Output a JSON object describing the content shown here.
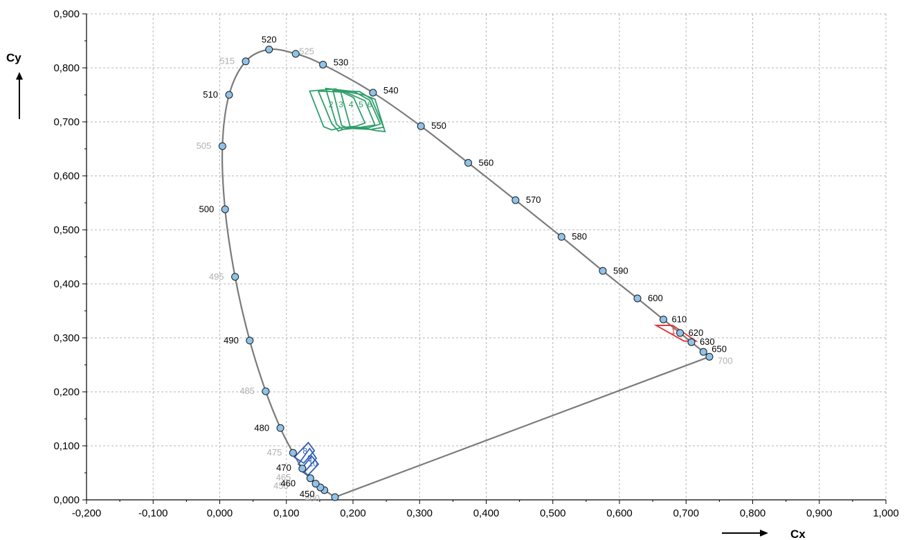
{
  "chart_data": {
    "type": "scatter",
    "xlabel": "Cx",
    "ylabel": "Cy",
    "xlim": [
      -0.2,
      1.0
    ],
    "ylim": [
      0.0,
      0.9
    ],
    "x_ticks": [
      "-0,200",
      "-0,100",
      "0,000",
      "0,100",
      "0,200",
      "0,300",
      "0,400",
      "0,500",
      "0,600",
      "0,700",
      "0,800",
      "0,900",
      "1,000"
    ],
    "y_ticks": [
      "0,000",
      "0,100",
      "0,200",
      "0,300",
      "0,400",
      "0,500",
      "0,600",
      "0,700",
      "0,800",
      "0,900"
    ],
    "grid": true,
    "locus_color": "#7a7a7a",
    "marker_color": "#8ec3ea",
    "locus_points": [
      {
        "label": "400",
        "x": 0.173,
        "y": 0.005,
        "label_color": "#b0b0b0"
      },
      {
        "label": "450",
        "x": 0.157,
        "y": 0.018,
        "label_color": "#000000"
      },
      {
        "label": "455",
        "x": 0.151,
        "y": 0.023,
        "label_color": "#b0b0b0"
      },
      {
        "label": "460",
        "x": 0.144,
        "y": 0.03,
        "label_color": "#000000"
      },
      {
        "label": "465",
        "x": 0.136,
        "y": 0.04,
        "label_color": "#b0b0b0"
      },
      {
        "label": "470",
        "x": 0.124,
        "y": 0.058,
        "label_color": "#000000"
      },
      {
        "label": "475",
        "x": 0.11,
        "y": 0.087,
        "label_color": "#b0b0b0"
      },
      {
        "label": "480",
        "x": 0.091,
        "y": 0.133,
        "label_color": "#000000"
      },
      {
        "label": "485",
        "x": 0.069,
        "y": 0.201,
        "label_color": "#b0b0b0"
      },
      {
        "label": "490",
        "x": 0.045,
        "y": 0.295,
        "label_color": "#000000"
      },
      {
        "label": "495",
        "x": 0.023,
        "y": 0.413,
        "label_color": "#b0b0b0"
      },
      {
        "label": "500",
        "x": 0.008,
        "y": 0.538,
        "label_color": "#000000"
      },
      {
        "label": "505",
        "x": 0.004,
        "y": 0.655,
        "label_color": "#b0b0b0"
      },
      {
        "label": "510",
        "x": 0.014,
        "y": 0.75,
        "label_color": "#000000"
      },
      {
        "label": "515",
        "x": 0.039,
        "y": 0.812,
        "label_color": "#b0b0b0"
      },
      {
        "label": "520",
        "x": 0.074,
        "y": 0.834,
        "label_color": "#000000"
      },
      {
        "label": "525",
        "x": 0.114,
        "y": 0.826,
        "label_color": "#b0b0b0"
      },
      {
        "label": "530",
        "x": 0.155,
        "y": 0.806,
        "label_color": "#000000"
      },
      {
        "label": "540",
        "x": 0.23,
        "y": 0.754,
        "label_color": "#000000"
      },
      {
        "label": "550",
        "x": 0.302,
        "y": 0.692,
        "label_color": "#000000"
      },
      {
        "label": "560",
        "x": 0.373,
        "y": 0.624,
        "label_color": "#000000"
      },
      {
        "label": "570",
        "x": 0.444,
        "y": 0.555,
        "label_color": "#000000"
      },
      {
        "label": "580",
        "x": 0.513,
        "y": 0.487,
        "label_color": "#000000"
      },
      {
        "label": "590",
        "x": 0.575,
        "y": 0.424,
        "label_color": "#000000"
      },
      {
        "label": "600",
        "x": 0.627,
        "y": 0.373,
        "label_color": "#000000"
      },
      {
        "label": "610",
        "x": 0.666,
        "y": 0.334,
        "label_color": "#000000"
      },
      {
        "label": "620",
        "x": 0.691,
        "y": 0.309,
        "label_color": "#000000"
      },
      {
        "label": "630",
        "x": 0.708,
        "y": 0.292,
        "label_color": "#000000"
      },
      {
        "label": "650",
        "x": 0.726,
        "y": 0.274,
        "label_color": "#000000"
      },
      {
        "label": "700",
        "x": 0.735,
        "y": 0.265,
        "label_color": "#b0b0b0"
      }
    ],
    "regions": [
      {
        "color": "#2e9e6a",
        "label": "2",
        "label_at": [
          0.167,
          0.727
        ],
        "polygon": [
          [
            0.135,
            0.757
          ],
          [
            0.174,
            0.761
          ],
          [
            0.201,
            0.745
          ],
          [
            0.218,
            0.698
          ],
          [
            0.205,
            0.692
          ],
          [
            0.181,
            0.689
          ],
          [
            0.168,
            0.685
          ],
          [
            0.156,
            0.691
          ]
        ]
      },
      {
        "color": "#2e9e6a",
        "label": "3",
        "label_at": [
          0.182,
          0.727
        ],
        "polygon": [
          [
            0.148,
            0.757
          ],
          [
            0.189,
            0.755
          ],
          [
            0.218,
            0.739
          ],
          [
            0.233,
            0.694
          ],
          [
            0.212,
            0.69
          ],
          [
            0.193,
            0.689
          ],
          [
            0.178,
            0.683
          ],
          [
            0.168,
            0.697
          ]
        ]
      },
      {
        "color": "#2e9e6a",
        "label": "4",
        "label_at": [
          0.197,
          0.727
        ],
        "polygon": [
          [
            0.159,
            0.762
          ],
          [
            0.202,
            0.756
          ],
          [
            0.225,
            0.74
          ],
          [
            0.241,
            0.696
          ],
          [
            0.223,
            0.689
          ],
          [
            0.202,
            0.688
          ],
          [
            0.184,
            0.686
          ],
          [
            0.175,
            0.696
          ]
        ]
      },
      {
        "color": "#2e9e6a",
        "label": "5",
        "label_at": [
          0.212,
          0.727
        ],
        "polygon": [
          [
            0.17,
            0.758
          ],
          [
            0.21,
            0.756
          ],
          [
            0.228,
            0.742
          ],
          [
            0.246,
            0.69
          ],
          [
            0.227,
            0.686
          ],
          [
            0.21,
            0.687
          ],
          [
            0.194,
            0.688
          ],
          [
            0.183,
            0.693
          ]
        ]
      },
      {
        "color": "#2e9e6a",
        "label": "6",
        "label_at": [
          0.225,
          0.727
        ],
        "polygon": [
          [
            0.181,
            0.758
          ],
          [
            0.216,
            0.75
          ],
          [
            0.233,
            0.742
          ],
          [
            0.248,
            0.682
          ],
          [
            0.233,
            0.684
          ],
          [
            0.219,
            0.688
          ],
          [
            0.205,
            0.688
          ],
          [
            0.196,
            0.69
          ]
        ]
      },
      {
        "color": "#2f5fb5",
        "label": "8",
        "label_at": [
          0.128,
          0.085
        ],
        "polygon": [
          [
            0.112,
            0.079
          ],
          [
            0.133,
            0.106
          ],
          [
            0.142,
            0.091
          ],
          [
            0.126,
            0.068
          ]
        ]
      },
      {
        "color": "#2f5fb5",
        "label": "9",
        "label_at": [
          0.135,
          0.072
        ],
        "polygon": [
          [
            0.118,
            0.066
          ],
          [
            0.135,
            0.095
          ],
          [
            0.145,
            0.077
          ],
          [
            0.129,
            0.054
          ]
        ]
      },
      {
        "color": "#2f5fb5",
        "label": "10",
        "label_at": [
          0.14,
          0.062
        ],
        "polygon": [
          [
            0.121,
            0.055
          ],
          [
            0.138,
            0.081
          ],
          [
            0.148,
            0.066
          ],
          [
            0.132,
            0.045
          ]
        ]
      },
      {
        "color": "#e03030",
        "label": "1",
        "label_at": [
          0.681,
          0.307
        ],
        "polygon": [
          [
            0.655,
            0.323
          ],
          [
            0.68,
            0.323
          ],
          [
            0.715,
            0.294
          ],
          [
            0.697,
            0.294
          ]
        ]
      }
    ]
  }
}
